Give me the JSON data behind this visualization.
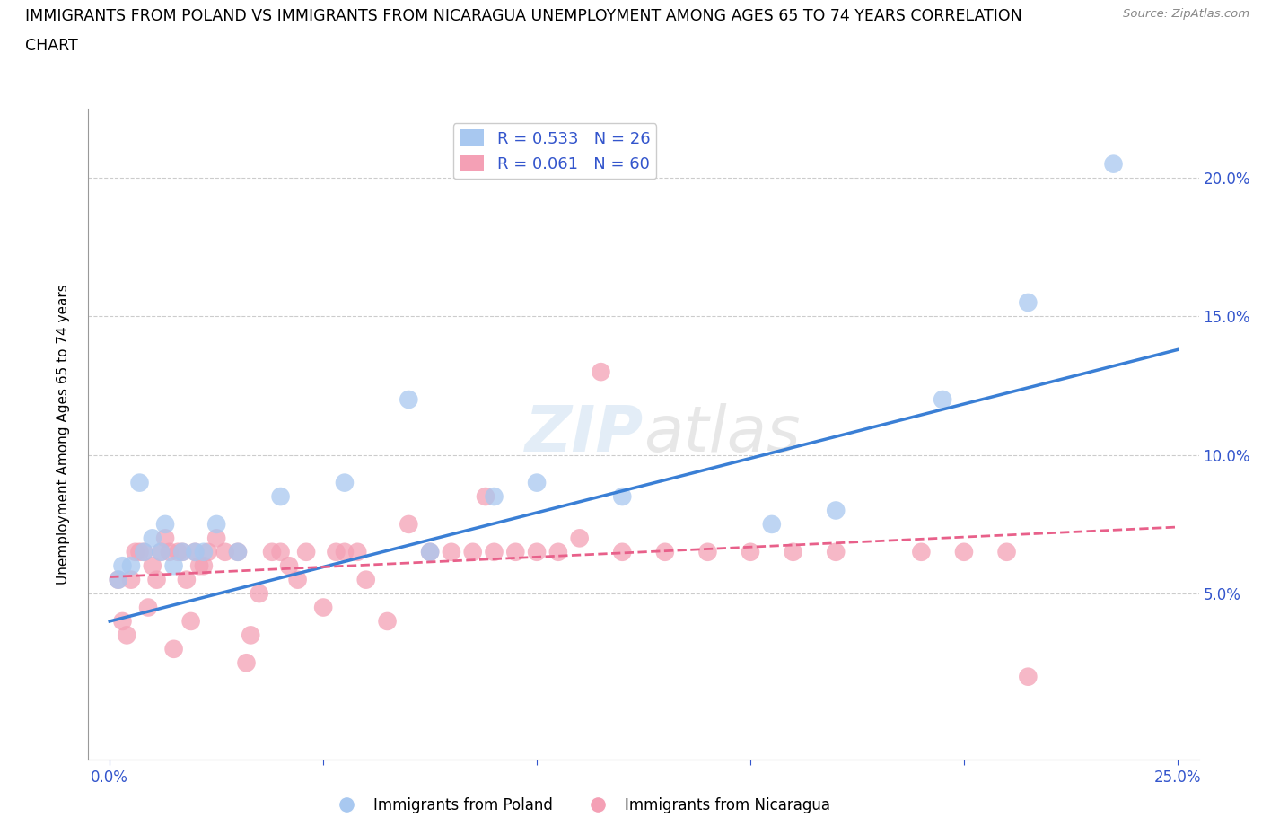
{
  "title_line1": "IMMIGRANTS FROM POLAND VS IMMIGRANTS FROM NICARAGUA UNEMPLOYMENT AMONG AGES 65 TO 74 YEARS CORRELATION",
  "title_line2": "CHART",
  "source": "Source: ZipAtlas.com",
  "ylabel": "Unemployment Among Ages 65 to 74 years",
  "xlim": [
    -0.005,
    0.255
  ],
  "ylim": [
    -0.01,
    0.225
  ],
  "xticks": [
    0.0,
    0.05,
    0.1,
    0.15,
    0.2,
    0.25
  ],
  "yticks": [
    0.05,
    0.1,
    0.15,
    0.2
  ],
  "ytick_labels": [
    "5.0%",
    "10.0%",
    "15.0%",
    "20.0%"
  ],
  "xtick_labels_bottom": [
    "0.0%",
    "",
    "",
    "",
    "",
    "25.0%"
  ],
  "poland_color": "#a8c8f0",
  "nicaragua_color": "#f4a0b5",
  "poland_line_color": "#3a7fd5",
  "nicaragua_line_color": "#e8608a",
  "R_poland": 0.533,
  "N_poland": 26,
  "R_nicaragua": 0.061,
  "N_nicaragua": 60,
  "legend_text_color": "#3355cc",
  "poland_x": [
    0.002,
    0.003,
    0.005,
    0.007,
    0.008,
    0.01,
    0.012,
    0.013,
    0.015,
    0.017,
    0.02,
    0.022,
    0.025,
    0.03,
    0.04,
    0.055,
    0.07,
    0.075,
    0.09,
    0.1,
    0.12,
    0.155,
    0.17,
    0.195,
    0.215,
    0.235
  ],
  "poland_y": [
    0.055,
    0.06,
    0.06,
    0.09,
    0.065,
    0.07,
    0.065,
    0.075,
    0.06,
    0.065,
    0.065,
    0.065,
    0.075,
    0.065,
    0.085,
    0.09,
    0.12,
    0.065,
    0.085,
    0.09,
    0.085,
    0.075,
    0.08,
    0.12,
    0.155,
    0.205
  ],
  "nicaragua_x": [
    0.002,
    0.003,
    0.004,
    0.005,
    0.006,
    0.007,
    0.008,
    0.009,
    0.01,
    0.011,
    0.012,
    0.013,
    0.014,
    0.015,
    0.016,
    0.017,
    0.018,
    0.019,
    0.02,
    0.021,
    0.022,
    0.023,
    0.025,
    0.027,
    0.03,
    0.032,
    0.033,
    0.035,
    0.038,
    0.04,
    0.042,
    0.044,
    0.046,
    0.05,
    0.053,
    0.055,
    0.058,
    0.06,
    0.065,
    0.07,
    0.075,
    0.08,
    0.085,
    0.088,
    0.09,
    0.095,
    0.1,
    0.105,
    0.11,
    0.115,
    0.12,
    0.13,
    0.14,
    0.15,
    0.16,
    0.17,
    0.19,
    0.2,
    0.21,
    0.215
  ],
  "nicaragua_y": [
    0.055,
    0.04,
    0.035,
    0.055,
    0.065,
    0.065,
    0.065,
    0.045,
    0.06,
    0.055,
    0.065,
    0.07,
    0.065,
    0.03,
    0.065,
    0.065,
    0.055,
    0.04,
    0.065,
    0.06,
    0.06,
    0.065,
    0.07,
    0.065,
    0.065,
    0.025,
    0.035,
    0.05,
    0.065,
    0.065,
    0.06,
    0.055,
    0.065,
    0.045,
    0.065,
    0.065,
    0.065,
    0.055,
    0.04,
    0.075,
    0.065,
    0.065,
    0.065,
    0.085,
    0.065,
    0.065,
    0.065,
    0.065,
    0.07,
    0.13,
    0.065,
    0.065,
    0.065,
    0.065,
    0.065,
    0.065,
    0.065,
    0.065,
    0.065,
    0.02
  ],
  "poland_line_y_start": 0.04,
  "poland_line_y_end": 0.138,
  "nicaragua_line_y_start": 0.056,
  "nicaragua_line_y_end": 0.074
}
